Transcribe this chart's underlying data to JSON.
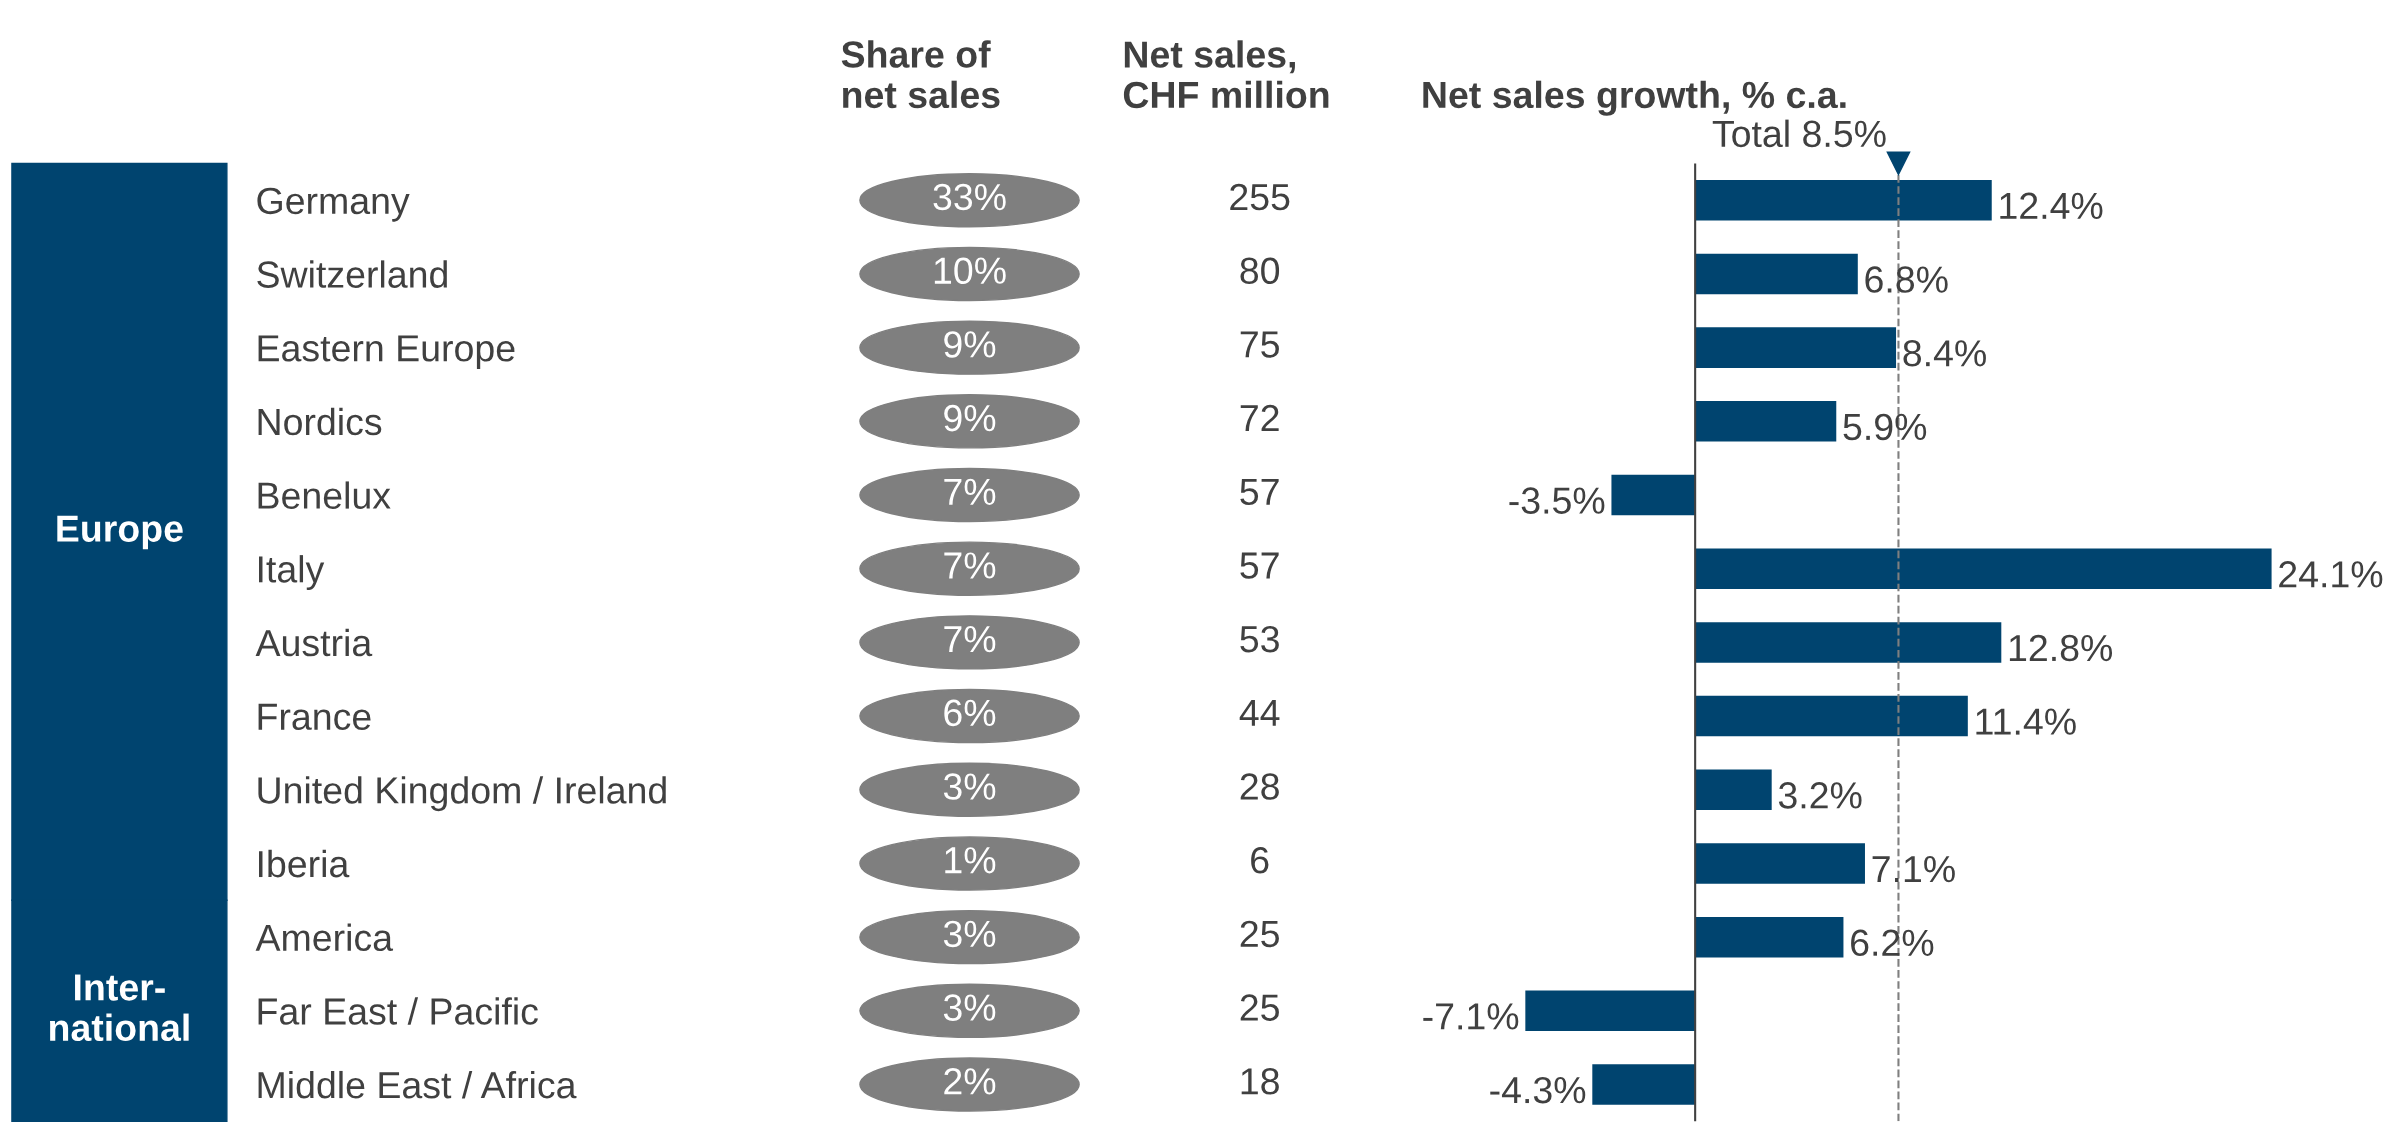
{
  "chart_data": [
    {
      "type": "other",
      "title": "Share of\nnet sales",
      "values": [
        33,
        10,
        9,
        9,
        7,
        7,
        7,
        6,
        3,
        1,
        3,
        3,
        2
      ],
      "value_labels": [
        "33%",
        "10%",
        "9%",
        "9%",
        "7%",
        "7%",
        "7%",
        "6%",
        "3%",
        "1%",
        "3%",
        "3%",
        "2%"
      ],
      "color": "#7f7f7f",
      "annotations": [
        "Europe",
        "Inter-\nnational"
      ]
    },
    {
      "type": "other",
      "title": "Net sales,\nCHF million",
      "values": [
        255,
        80,
        75,
        72,
        57,
        57,
        53,
        44,
        28,
        6,
        25,
        25,
        18
      ],
      "data_labels": true
    },
    {
      "type": "bar",
      "orientation": "horizontal",
      "title": "Net sales growth, % c.a.",
      "categories": [
        "Germany",
        "Switzerland",
        "Eastern Europe",
        "Nordics",
        "Benelux",
        "Italy",
        "Austria",
        "France",
        "United Kingdom / Ireland",
        "Iberia",
        "America",
        "Far East / Pacific",
        "Middle East / Africa"
      ],
      "values": [
        12.4,
        6.8,
        8.4,
        5.9,
        -3.5,
        24.1,
        12.8,
        11.4,
        3.2,
        7.1,
        6.2,
        -7.1,
        -4.3
      ],
      "value_labels": [
        "12.4%",
        "6.8%",
        "8.4%",
        "5.9%",
        "-3.5%",
        "24.1%",
        "12.8%",
        "11.4%",
        "3.2%",
        "7.1%",
        "6.2%",
        "-7.1%",
        "-4.3%"
      ],
      "color": "#00446f",
      "tick_labels": "y",
      "ref_lines": [
        {
          "axis": "x",
          "value": 8.5,
          "label": "Total 8.5%",
          "color": "#7f7f7f",
          "line_style": "dashed"
        }
      ]
    }
  ]
}
